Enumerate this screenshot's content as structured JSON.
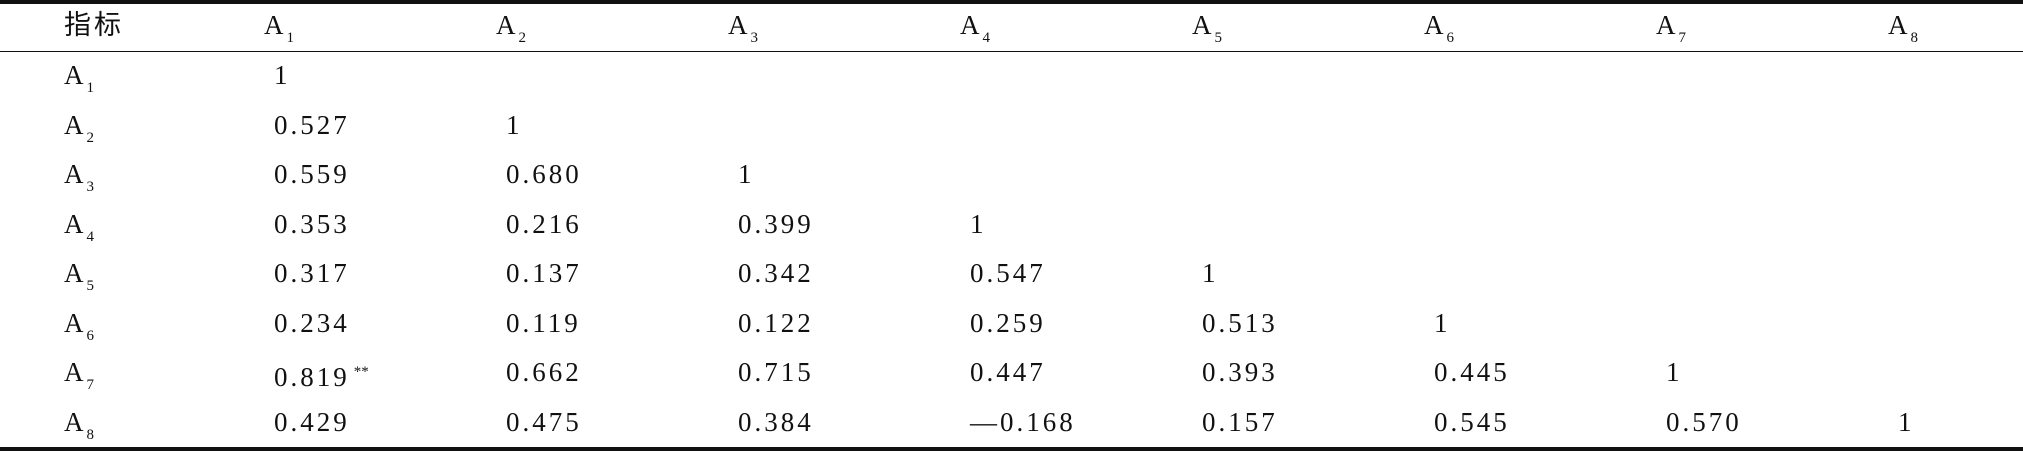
{
  "table": {
    "header": [
      {
        "text": "指标"
      },
      {
        "text": "A",
        "sub": "1"
      },
      {
        "text": "A",
        "sub": "2"
      },
      {
        "text": "A",
        "sub": "3"
      },
      {
        "text": "A",
        "sub": "4"
      },
      {
        "text": "A",
        "sub": "5"
      },
      {
        "text": "A",
        "sub": "6"
      },
      {
        "text": "A",
        "sub": "7"
      },
      {
        "text": "A",
        "sub": "8"
      }
    ],
    "rows": [
      {
        "label": {
          "text": "A",
          "sub": "1"
        },
        "cells": [
          {
            "text": "1"
          }
        ]
      },
      {
        "label": {
          "text": "A",
          "sub": "2"
        },
        "cells": [
          {
            "text": "0.527"
          },
          {
            "text": "1"
          }
        ]
      },
      {
        "label": {
          "text": "A",
          "sub": "3"
        },
        "cells": [
          {
            "text": "0.559"
          },
          {
            "text": "0.680"
          },
          {
            "text": "1"
          }
        ]
      },
      {
        "label": {
          "text": "A",
          "sub": "4"
        },
        "cells": [
          {
            "text": "0.353"
          },
          {
            "text": "0.216"
          },
          {
            "text": "0.399"
          },
          {
            "text": "1"
          }
        ]
      },
      {
        "label": {
          "text": "A",
          "sub": "5"
        },
        "cells": [
          {
            "text": "0.317"
          },
          {
            "text": "0.137"
          },
          {
            "text": "0.342"
          },
          {
            "text": "0.547"
          },
          {
            "text": "1"
          }
        ]
      },
      {
        "label": {
          "text": "A",
          "sub": "6"
        },
        "cells": [
          {
            "text": "0.234"
          },
          {
            "text": "0.119"
          },
          {
            "text": "0.122"
          },
          {
            "text": "0.259"
          },
          {
            "text": "0.513"
          },
          {
            "text": "1"
          }
        ]
      },
      {
        "label": {
          "text": "A",
          "sub": "7"
        },
        "cells": [
          {
            "text": "0.819",
            "note": "**"
          },
          {
            "text": "0.662"
          },
          {
            "text": "0.715"
          },
          {
            "text": "0.447"
          },
          {
            "text": "0.393"
          },
          {
            "text": "0.445"
          },
          {
            "text": "1"
          }
        ]
      },
      {
        "label": {
          "text": "A",
          "sub": "8"
        },
        "cells": [
          {
            "text": "0.429"
          },
          {
            "text": "0.475"
          },
          {
            "text": "0.384"
          },
          {
            "text": "—0.168"
          },
          {
            "text": "0.157"
          },
          {
            "text": "0.545"
          },
          {
            "text": "0.570"
          },
          {
            "text": "1"
          }
        ]
      }
    ]
  }
}
